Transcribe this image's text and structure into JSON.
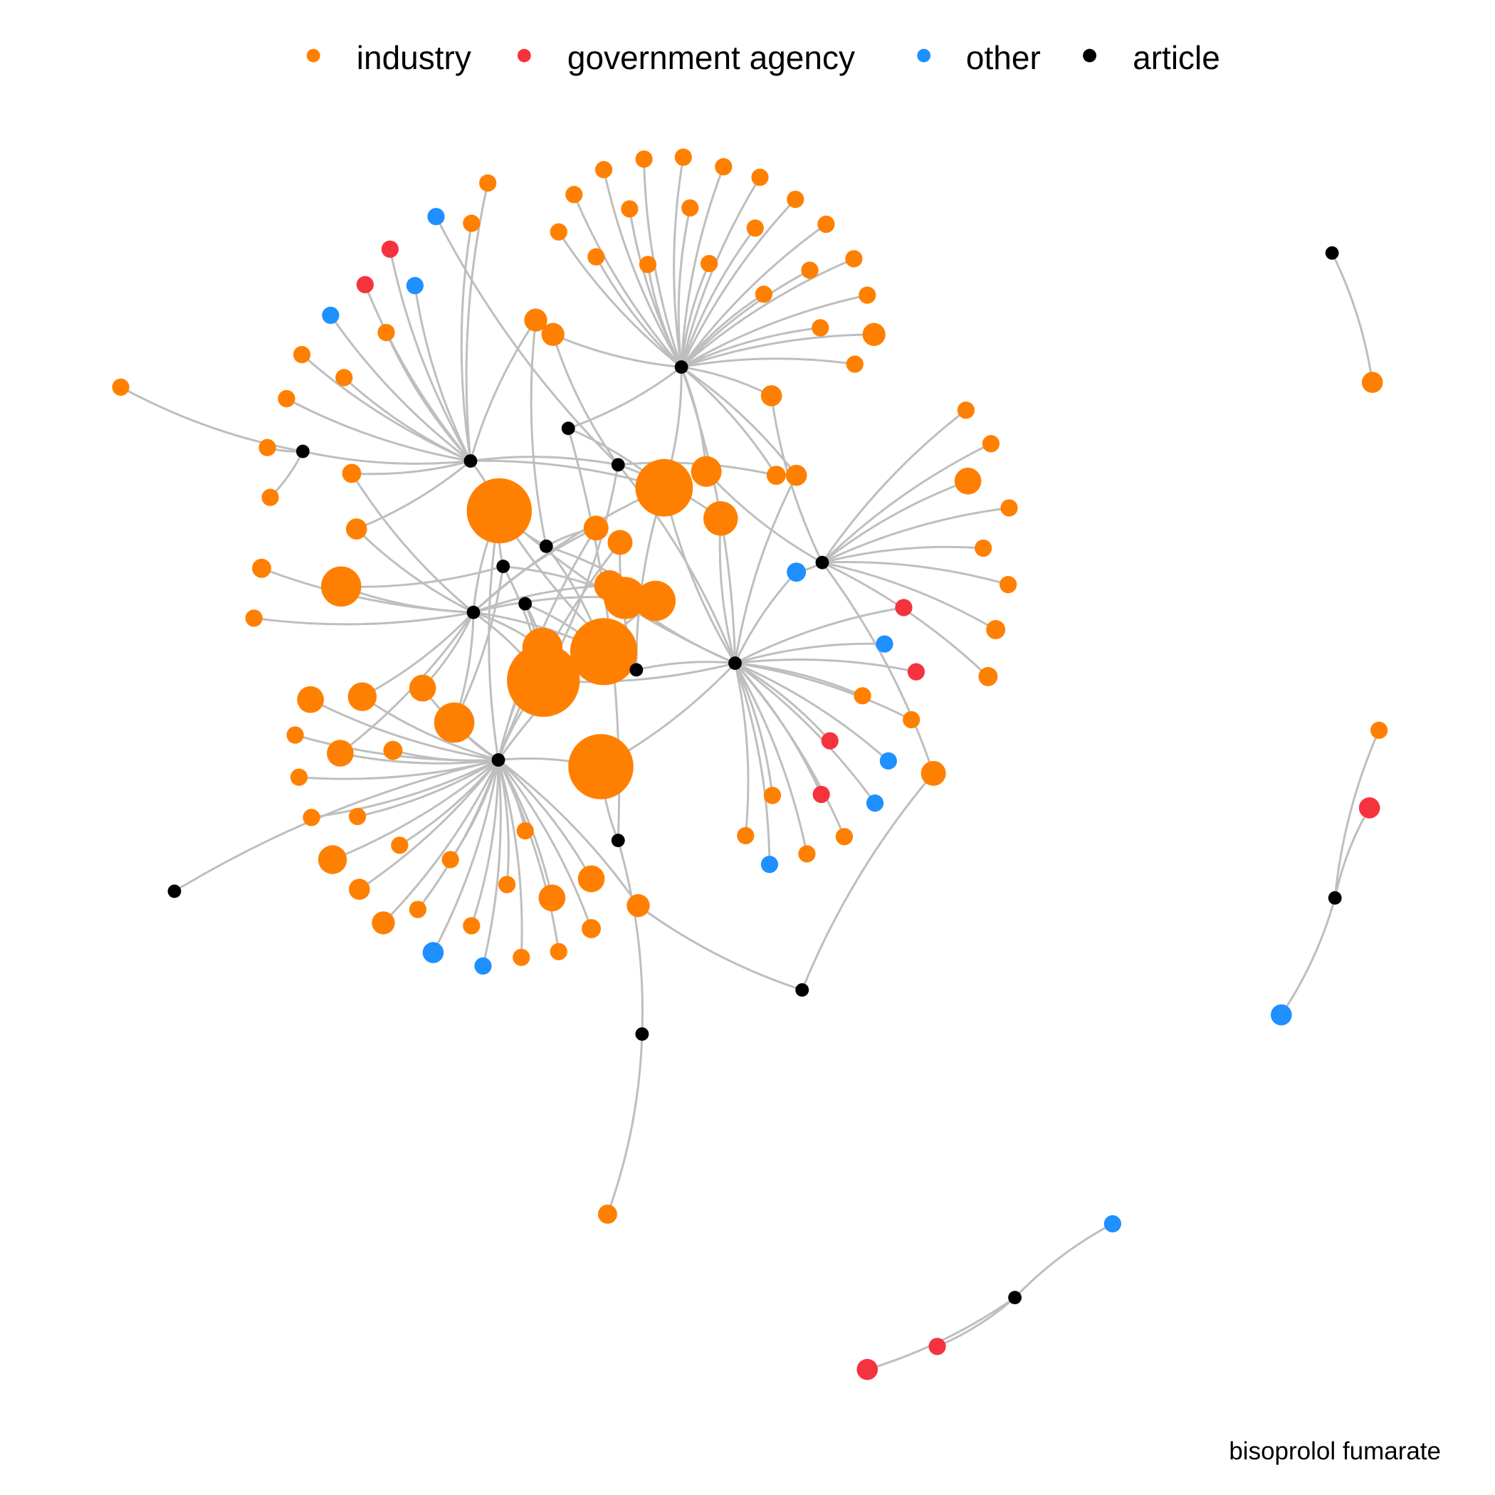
{
  "legend": {
    "items": [
      {
        "label": "industry",
        "color": "#ff8000"
      },
      {
        "label": "government agency",
        "color": "#f5333f"
      },
      {
        "label": "other",
        "color": "#1e90ff"
      },
      {
        "label": "article",
        "color": "#000000"
      }
    ]
  },
  "caption": "bisoprolol fumarate"
}
